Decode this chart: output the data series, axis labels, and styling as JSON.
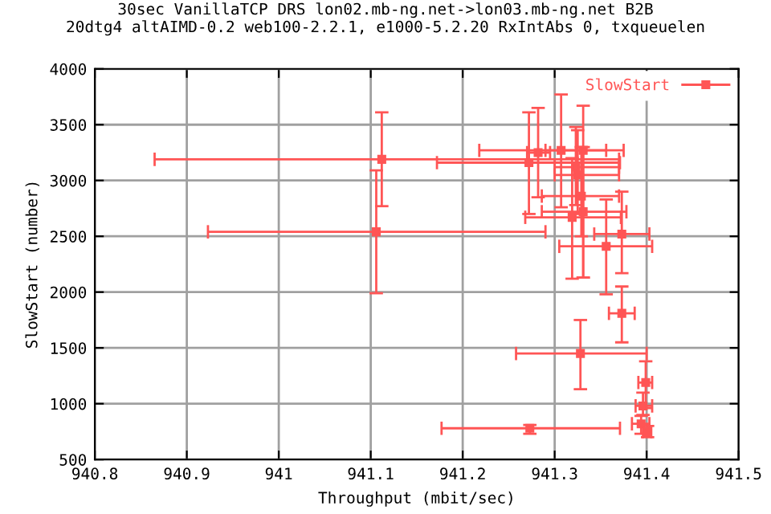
{
  "chart_data": {
    "type": "scatter",
    "title": "30sec VanillaTCP DRS lon02.mb-ng.net->lon03.mb-ng.net B2B\n20dtg4 altAIMD-0.2 web100-2.2.1, e1000-5.2.20 RxIntAbs 0, txqueuelen",
    "xlabel": "Throughput (mbit/sec)",
    "ylabel": "SlowStart (number)",
    "xlim": [
      940.8,
      941.5
    ],
    "xticks": [
      940.8,
      940.9,
      941,
      941.1,
      941.2,
      941.3,
      941.4,
      941.5
    ],
    "ylim": [
      500,
      4000
    ],
    "yticks": [
      500,
      1000,
      1500,
      2000,
      2500,
      3000,
      3500,
      4000
    ],
    "grid": true,
    "legend": "top right",
    "marker": "square",
    "series": [
      {
        "name": "SlowStart",
        "color": "#ff5555",
        "x": [
          941.112,
          941.106,
          941.307,
          941.272,
          941.282,
          941.323,
          941.325,
          941.331,
          941.329,
          941.331,
          941.319,
          941.373,
          941.356,
          941.373,
          941.328,
          941.399,
          941.396,
          941.394,
          941.401,
          941.273
        ],
        "values": [
          3190,
          2540,
          3270,
          3160,
          3250,
          3120,
          3050,
          3270,
          2860,
          2720,
          2670,
          2520,
          2410,
          1810,
          1450,
          1190,
          980,
          820,
          750,
          780
        ],
        "xerrors": [
          [
            940.865,
            941.37
          ],
          [
            940.923,
            941.29
          ],
          [
            941.218,
            941.356
          ],
          [
            941.172,
            941.371
          ],
          [
            941.27,
            941.295
          ],
          [
            941.3,
            941.37
          ],
          [
            941.3,
            941.37
          ],
          [
            941.29,
            941.375
          ],
          [
            941.286,
            941.37
          ],
          [
            941.286,
            941.378
          ],
          [
            941.268,
            941.372
          ],
          [
            941.343,
            941.403
          ],
          [
            941.305,
            941.406
          ],
          [
            941.359,
            941.387
          ],
          [
            941.258,
            941.4
          ],
          [
            941.391,
            941.406
          ],
          [
            941.388,
            941.406
          ],
          [
            941.384,
            941.403
          ],
          [
            941.396,
            941.405
          ],
          [
            941.177,
            941.371
          ]
        ],
        "errors": [
          [
            2770,
            3610
          ],
          [
            1990,
            3090
          ],
          [
            2760,
            3770
          ],
          [
            2700,
            3610
          ],
          [
            2850,
            3650
          ],
          [
            2780,
            3480
          ],
          [
            2700,
            3450
          ],
          [
            2130,
            3670
          ],
          [
            2500,
            3300
          ],
          [
            2130,
            3300
          ],
          [
            2120,
            3200
          ],
          [
            2170,
            2900
          ],
          [
            1980,
            2830
          ],
          [
            1550,
            2050
          ],
          [
            1130,
            1750
          ],
          [
            960,
            1380
          ],
          [
            900,
            1100
          ],
          [
            730,
            890
          ],
          [
            700,
            800
          ],
          [
            730,
            810
          ]
        ]
      }
    ]
  }
}
